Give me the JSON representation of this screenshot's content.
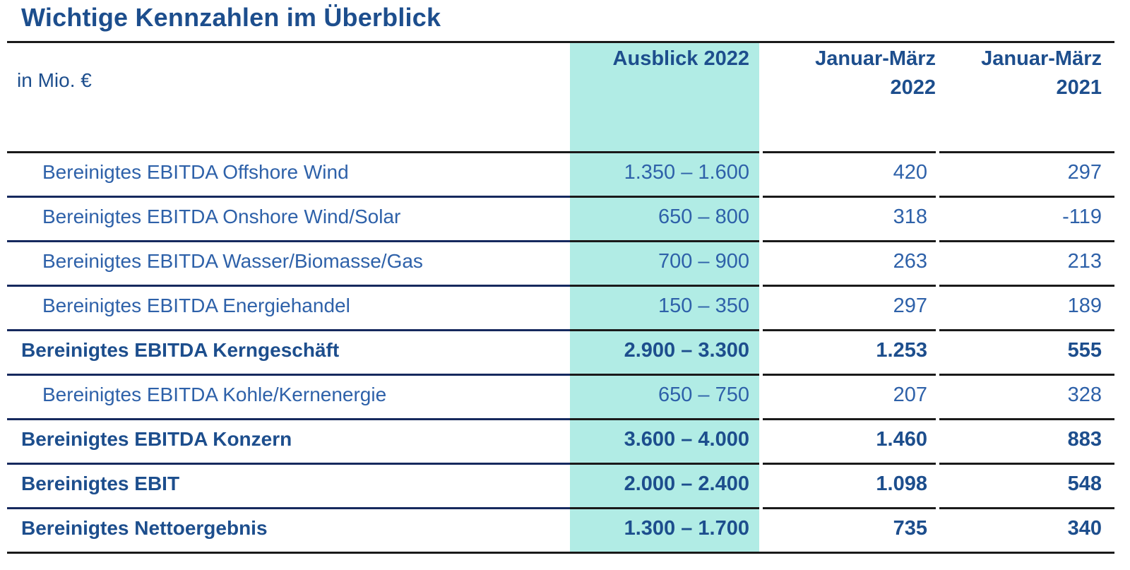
{
  "title": "Wichtige Kennzahlen im Überblick",
  "table": {
    "unit_label": "in Mio. €",
    "columns": [
      {
        "id": "ausblick-2022",
        "line1": "Ausblick 2022",
        "line2": "",
        "highlighted": true
      },
      {
        "id": "januar-maerz-2022",
        "line1": "Januar-März",
        "line2": "2022",
        "highlighted": false
      },
      {
        "id": "januar-maerz-2021",
        "line1": "Januar-März",
        "line2": "2021",
        "highlighted": false
      }
    ],
    "rows": [
      {
        "label": "Bereinigtes EBITDA Offshore Wind",
        "bold": false,
        "values": [
          "1.350 – 1.600",
          "420",
          "297"
        ]
      },
      {
        "label": "Bereinigtes EBITDA Onshore Wind/Solar",
        "bold": false,
        "values": [
          "650 – 800",
          "318",
          "-119"
        ]
      },
      {
        "label": "Bereinigtes EBITDA Wasser/Biomasse/Gas",
        "bold": false,
        "values": [
          "700 – 900",
          "263",
          "213"
        ]
      },
      {
        "label": "Bereinigtes EBITDA Energiehandel",
        "bold": false,
        "values": [
          "150 – 350",
          "297",
          "189"
        ]
      },
      {
        "label": "Bereinigtes EBITDA Kerngeschäft",
        "bold": true,
        "values": [
          "2.900 – 3.300",
          "1.253",
          "555"
        ]
      },
      {
        "label": "Bereinigtes EBITDA Kohle/Kernenergie",
        "bold": false,
        "values": [
          "650 – 750",
          "207",
          "328"
        ]
      },
      {
        "label": "Bereinigtes EBITDA Konzern",
        "bold": true,
        "values": [
          "3.600 – 4.000",
          "1.460",
          "883"
        ]
      },
      {
        "label": "Bereinigtes EBIT",
        "bold": true,
        "values": [
          "2.000 – 2.400",
          "1.098",
          "548"
        ]
      },
      {
        "label": "Bereinigtes Nettoergebnis",
        "bold": true,
        "values": [
          "1.300 – 1.700",
          "735",
          "340"
        ]
      }
    ]
  },
  "colors": {
    "text_primary": "#1d4e8d",
    "text_regular": "#2e61a9",
    "highlight_mint": "#b1ece5",
    "rule_navy": "#16295e",
    "rule_black": "#1a1a1a"
  }
}
